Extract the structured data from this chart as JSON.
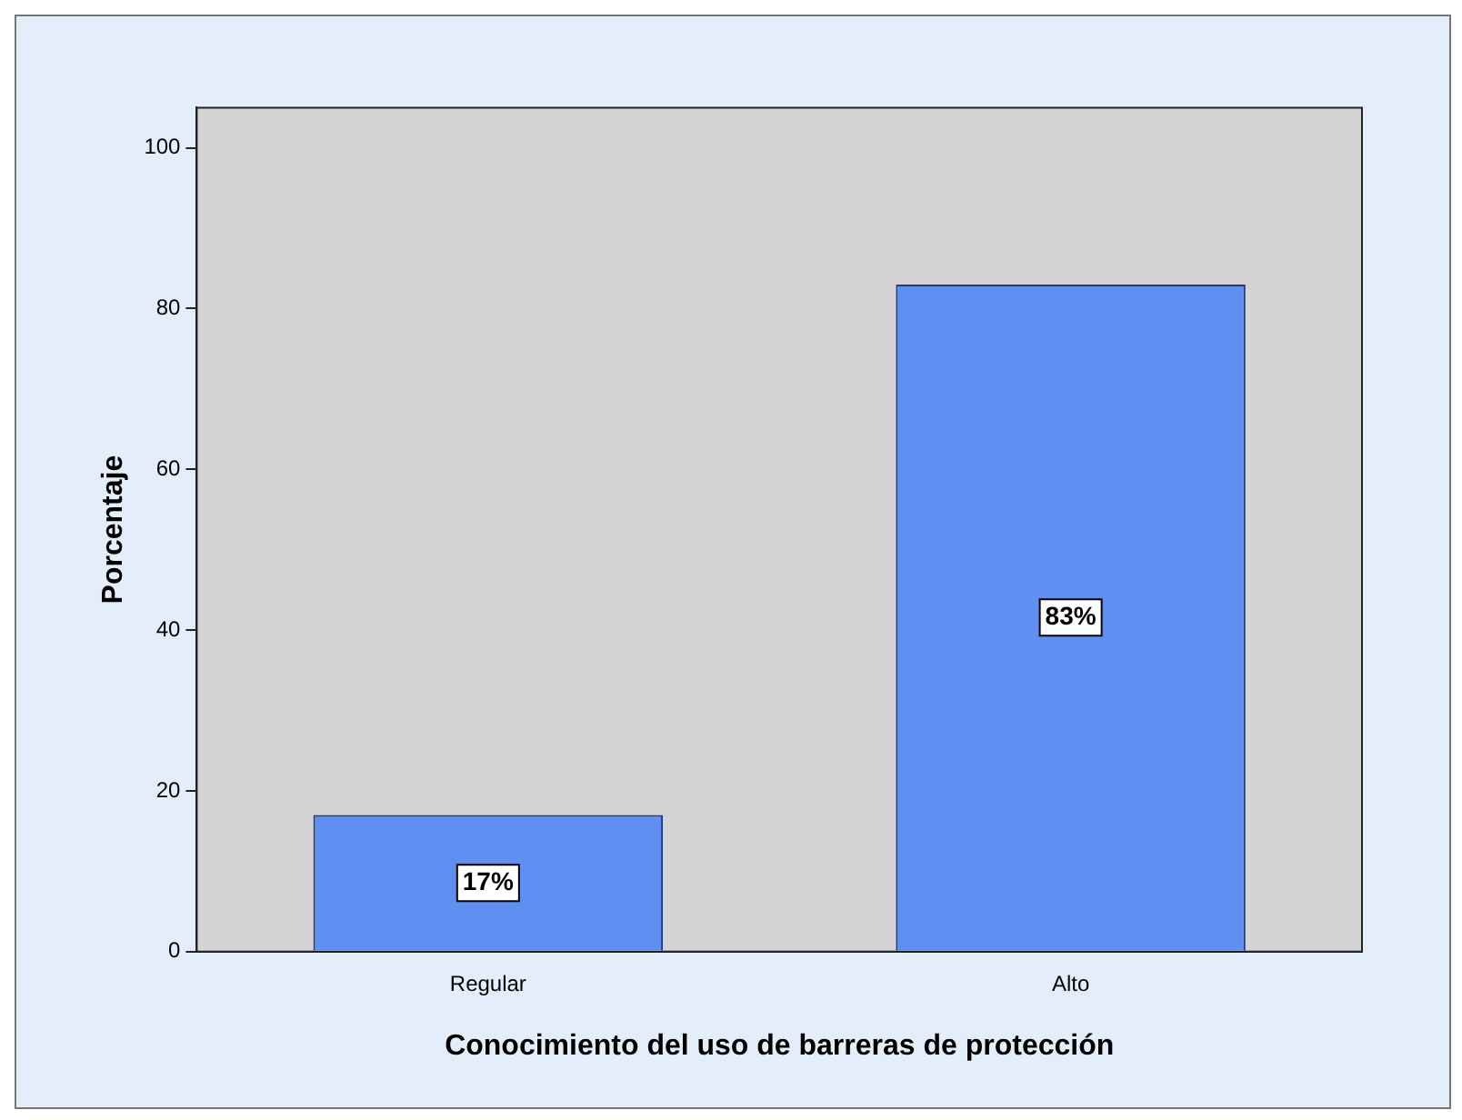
{
  "chart_data": {
    "type": "bar",
    "xlabel": "Conocimiento del uso de barreras de protección",
    "ylabel": "Porcentaje",
    "categories": [
      "Regular",
      "Alto"
    ],
    "values": [
      17,
      83
    ],
    "color": "#5f8ff0",
    "value_labels": [
      "17%",
      "83%"
    ],
    "ylim": [
      0,
      105
    ],
    "yticks": [
      0,
      20,
      40,
      60,
      80,
      100
    ],
    "grid": false,
    "legend": false
  }
}
